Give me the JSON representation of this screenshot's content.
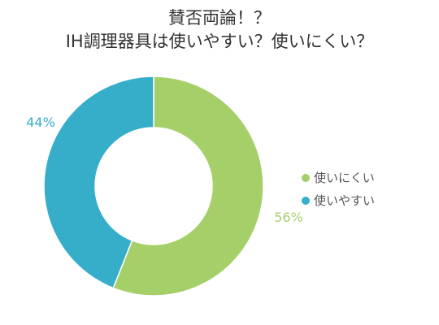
{
  "chart_data": {
    "type": "pie",
    "title": "賛否両論！？",
    "subtitle": "IH調理器具は使いやすい？使いにくい？",
    "categories": [
      "使いにくい",
      "使いやすい"
    ],
    "values": [
      56,
      44
    ],
    "value_labels": [
      "56%",
      "44%"
    ],
    "colors": [
      "#a5cf69",
      "#36aeca"
    ],
    "donut": true,
    "legend_position": "right",
    "legend": [
      "使いにくい",
      "使いやすい"
    ]
  }
}
